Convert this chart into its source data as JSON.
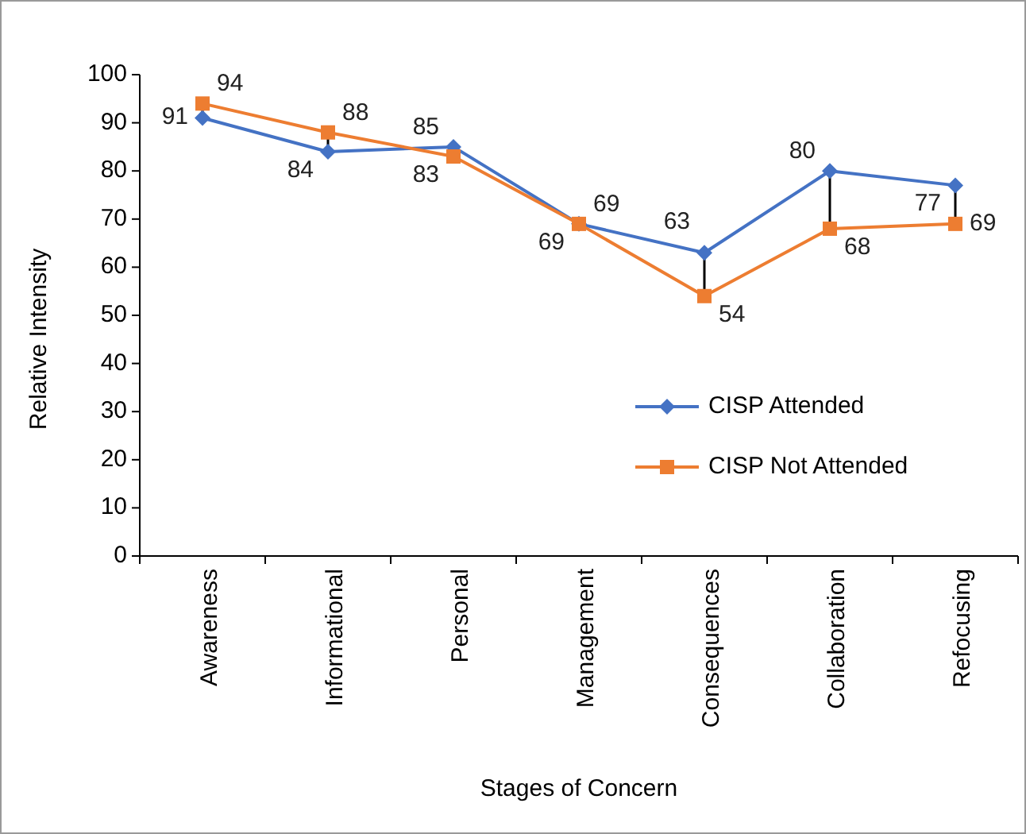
{
  "chart_data": {
    "type": "line",
    "xlabel": "Stages of Concern",
    "ylabel": "Relative Intensity",
    "categories": [
      "Awareness",
      "Informational",
      "Personal",
      "Management",
      "Consequences",
      "Collaboration",
      "Refocusing"
    ],
    "series": [
      {
        "name": "CISP Attended",
        "color": "#4472c4",
        "marker": "diamond",
        "values": [
          91,
          84,
          85,
          69,
          63,
          80,
          77
        ]
      },
      {
        "name": "CISP Not Attended",
        "color": "#ed7d31",
        "marker": "square",
        "values": [
          94,
          88,
          83,
          69,
          54,
          68,
          69
        ]
      }
    ],
    "ylim": [
      0,
      100
    ],
    "yticks": [
      0,
      10,
      20,
      30,
      40,
      50,
      60,
      70,
      80,
      90,
      100
    ],
    "grid": false,
    "legend": "right",
    "data_labels": true
  }
}
